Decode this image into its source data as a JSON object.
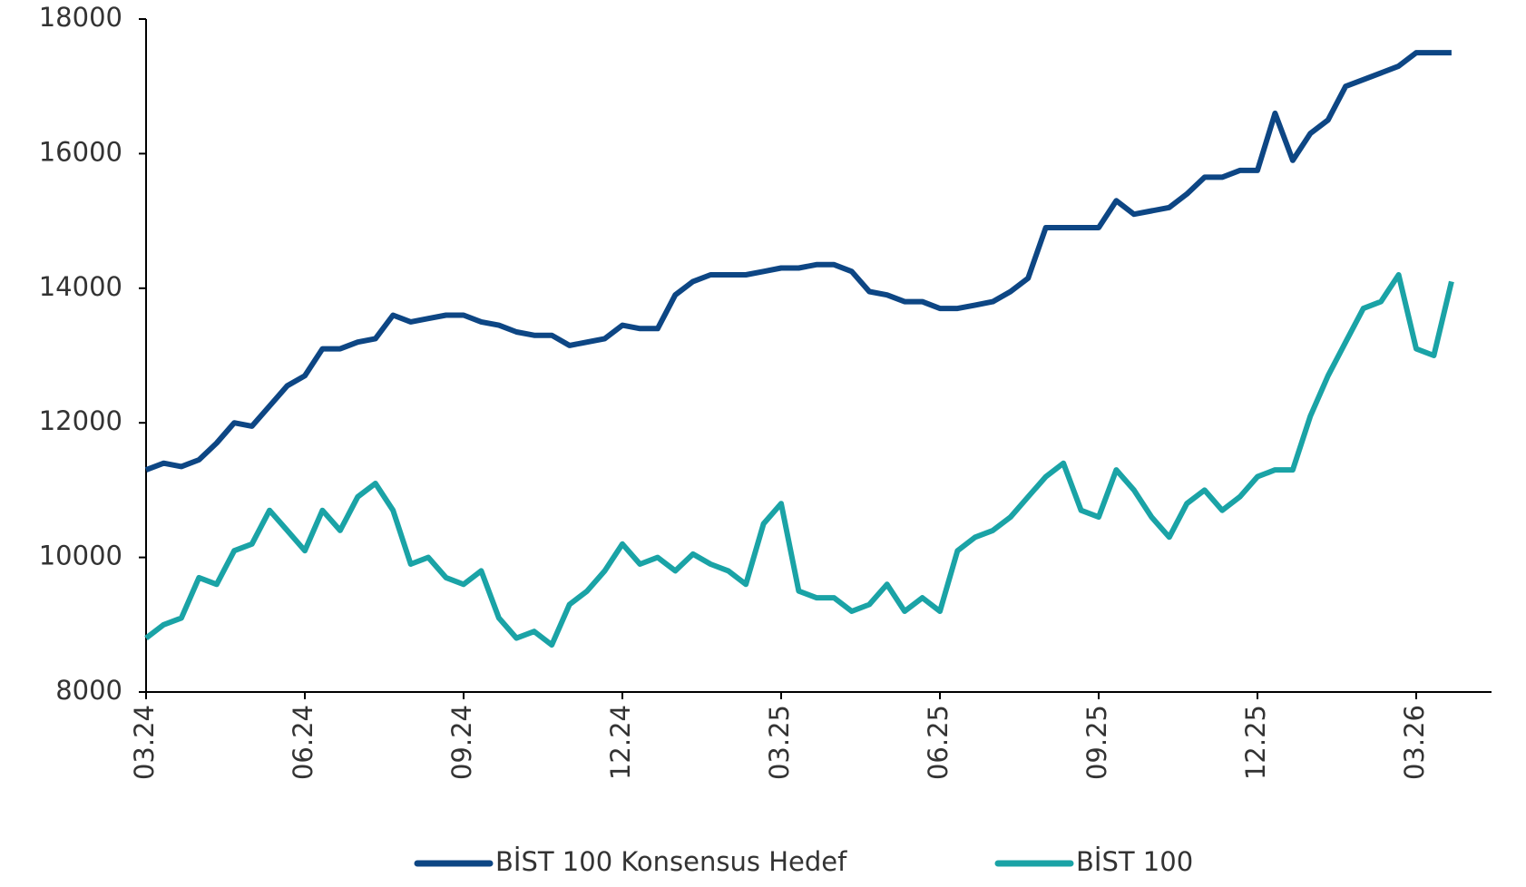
{
  "chart_data": {
    "type": "line",
    "categories": [
      "03.24",
      null,
      null,
      null,
      null,
      null,
      null,
      null,
      null,
      "06.24",
      null,
      null,
      null,
      null,
      null,
      null,
      null,
      null,
      "09.24",
      null,
      null,
      null,
      null,
      null,
      null,
      null,
      null,
      "12.24",
      null,
      null,
      null,
      null,
      null,
      null,
      null,
      null,
      "03.25",
      null,
      null,
      null,
      null,
      null,
      null,
      null,
      null,
      "06.25",
      null,
      null,
      null,
      null,
      null,
      null,
      null,
      null,
      "09.25",
      null,
      null,
      null,
      null,
      null,
      null,
      null,
      null,
      "12.25",
      null,
      null,
      null,
      null,
      null,
      null,
      null,
      null,
      "03.26",
      null,
      null
    ],
    "series": [
      {
        "name": "BİST 100 Konsensus Hedef",
        "color": "#0d4684",
        "values": [
          11300,
          11400,
          11350,
          11450,
          11700,
          12000,
          11950,
          12250,
          12550,
          12700,
          13100,
          13100,
          13200,
          13250,
          13600,
          13500,
          13550,
          13600,
          13600,
          13500,
          13450,
          13350,
          13300,
          13300,
          13150,
          13200,
          13250,
          13450,
          13400,
          13400,
          13900,
          14100,
          14200,
          14200,
          14200,
          14250,
          14300,
          14300,
          14350,
          14350,
          14250,
          13950,
          13900,
          13800,
          13800,
          13700,
          13700,
          13750,
          13800,
          13950,
          14150,
          14900,
          14900,
          14900,
          14900,
          15300,
          15100,
          15150,
          15200,
          15400,
          15650,
          15650,
          15750,
          15750,
          16600,
          15900,
          16300,
          16500,
          17000,
          17100,
          17200,
          17300,
          17500,
          17500,
          17500
        ]
      },
      {
        "name": "BİST 100",
        "color": "#1aa3a6",
        "values": [
          8800,
          9000,
          9100,
          9700,
          9600,
          10100,
          10200,
          10700,
          10400,
          10100,
          10700,
          10400,
          10900,
          11100,
          10700,
          9900,
          10000,
          9700,
          9600,
          9800,
          9100,
          8800,
          8900,
          8700,
          9300,
          9500,
          9800,
          10200,
          9900,
          10000,
          9800,
          10050,
          9900,
          9800,
          9600,
          10500,
          10800,
          9500,
          9400,
          9400,
          9200,
          9300,
          9600,
          9200,
          9400,
          9200,
          10100,
          10300,
          10400,
          10600,
          10900,
          11200,
          11400,
          10700,
          10600,
          11300,
          11000,
          10600,
          10300,
          10800,
          11000,
          10700,
          10900,
          11200,
          11300,
          11300,
          12100,
          12700,
          13200,
          13700,
          13800,
          14200,
          13100,
          13000,
          14100
        ]
      }
    ],
    "ylim": [
      8000,
      18000
    ],
    "yticks": [
      8000,
      10000,
      12000,
      14000,
      16000,
      18000
    ],
    "grid": false,
    "legend": "bottom"
  }
}
